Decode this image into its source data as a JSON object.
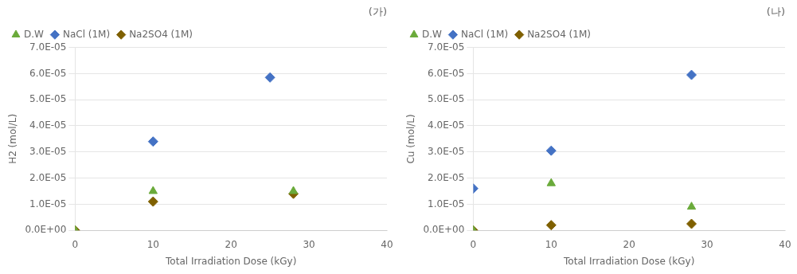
{
  "chart_data": [
    {
      "type": "scatter",
      "title": "(가)",
      "xlabel": "Total Irradiation Dose (kGy)",
      "ylabel": "H2 (mol/L)",
      "xlim": [
        0,
        40
      ],
      "xticks": [
        0,
        10,
        20,
        30,
        40
      ],
      "ylim": [
        0,
        7e-05
      ],
      "yticks": [
        {
          "value": 0,
          "label": "0.0E+00"
        },
        {
          "value": 1e-05,
          "label": "1.0E-05"
        },
        {
          "value": 2e-05,
          "label": "2.0E-05"
        },
        {
          "value": 3e-05,
          "label": "3.0E-05"
        },
        {
          "value": 4e-05,
          "label": "4.0E-05"
        },
        {
          "value": 5e-05,
          "label": "5.0E-05"
        },
        {
          "value": 6e-05,
          "label": "6.0E-05"
        },
        {
          "value": 7e-05,
          "label": "7.0E-05"
        }
      ],
      "grid": "y",
      "legend": "upper left",
      "series": [
        {
          "name": "D.W",
          "color": "#6aaa3a",
          "marker": "triangle",
          "x": [
            0,
            10,
            28
          ],
          "values": [
            0,
            1.5e-05,
            1.5e-05
          ]
        },
        {
          "name": "NaCl (1M)",
          "color": "#4472c4",
          "marker": "diamond",
          "x": [
            10,
            25
          ],
          "values": [
            3.4e-05,
            5.85e-05
          ]
        },
        {
          "name": "Na2SO4 (1M)",
          "color": "#7f6000",
          "marker": "diamond",
          "x": [
            0,
            10,
            28
          ],
          "values": [
            0,
            1.1e-05,
            1.4e-05
          ]
        }
      ]
    },
    {
      "type": "scatter",
      "title": "(나)",
      "xlabel": "Total Irradiation Dose (kGy)",
      "ylabel": "Cu (mol/L)",
      "xlim": [
        0,
        40
      ],
      "xticks": [
        0,
        10,
        20,
        30,
        40
      ],
      "ylim": [
        0,
        7e-05
      ],
      "yticks": [
        {
          "value": 0,
          "label": "0.0E+00"
        },
        {
          "value": 1e-05,
          "label": "1.0E-05"
        },
        {
          "value": 2e-05,
          "label": "2.0E-05"
        },
        {
          "value": 3e-05,
          "label": "3.0E-05"
        },
        {
          "value": 4e-05,
          "label": "4.0E-05"
        },
        {
          "value": 5e-05,
          "label": "5.0E-05"
        },
        {
          "value": 6e-05,
          "label": "6.0E-05"
        },
        {
          "value": 7e-05,
          "label": "7.0E-05"
        }
      ],
      "grid": "y",
      "legend": "upper left",
      "series": [
        {
          "name": "D.W",
          "color": "#6aaa3a",
          "marker": "triangle",
          "x": [
            0,
            10,
            28
          ],
          "values": [
            0,
            1.8e-05,
            9e-06
          ]
        },
        {
          "name": "NaCl (1M)",
          "color": "#4472c4",
          "marker": "diamond",
          "x": [
            0,
            10,
            28
          ],
          "values": [
            1.6e-05,
            3.05e-05,
            5.95e-05
          ]
        },
        {
          "name": "Na2SO4 (1M)",
          "color": "#7f6000",
          "marker": "diamond",
          "x": [
            0,
            10,
            28
          ],
          "values": [
            0,
            2e-06,
            2.5e-06
          ]
        }
      ]
    }
  ]
}
